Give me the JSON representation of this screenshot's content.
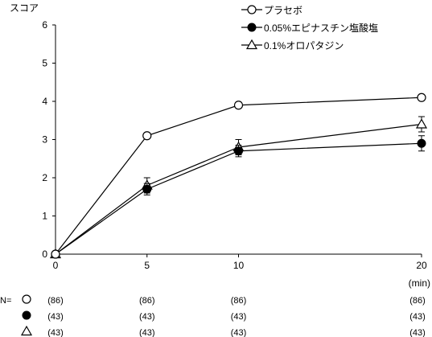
{
  "chart_data": {
    "type": "line",
    "ylabel": "スコア",
    "xunit": "(min)",
    "x": [
      0,
      5,
      10,
      20
    ],
    "x_tick_labels": [
      "0",
      "5",
      "10",
      "20"
    ],
    "ylim": [
      0,
      6
    ],
    "y_ticks": [
      0,
      1,
      2,
      3,
      4,
      5,
      6
    ],
    "y_tick_labels": [
      "0",
      "1",
      "2",
      "3",
      "4",
      "5",
      "6"
    ],
    "grid": false,
    "legend_position": "top-right",
    "series": [
      {
        "name": "プラセボ",
        "marker": "open-circle",
        "values": [
          0,
          3.1,
          3.9,
          4.1
        ],
        "errors": [
          0,
          0,
          0,
          0
        ],
        "n_marker_label": "N=",
        "n_counts": [
          "(86)",
          "(86)",
          "(86)",
          "(86)"
        ]
      },
      {
        "name": "0.05%エピナスチン塩酸塩",
        "marker": "filled-circle",
        "values": [
          0,
          1.7,
          2.7,
          2.9
        ],
        "errors": [
          0,
          0.15,
          0.15,
          0.2
        ],
        "n_marker_label": "",
        "n_counts": [
          "(43)",
          "(43)",
          "(43)",
          "(43)"
        ]
      },
      {
        "name": "0.1%オロパタジン",
        "marker": "open-triangle",
        "values": [
          0,
          1.8,
          2.8,
          3.4
        ],
        "errors": [
          0,
          0.2,
          0.2,
          0.2
        ],
        "n_marker_label": "",
        "n_counts": [
          "(43)",
          "(43)",
          "(43)",
          "(43)"
        ]
      }
    ]
  }
}
